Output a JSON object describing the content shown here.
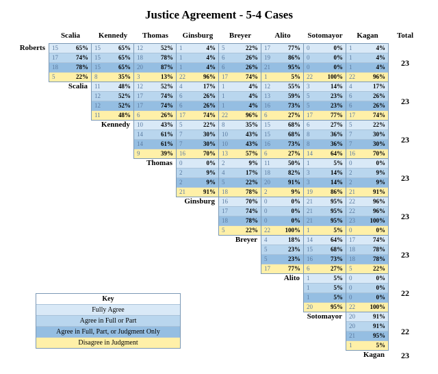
{
  "title": "Justice Agreement - 5-4 Cases",
  "justices": [
    "Roberts",
    "Scalia",
    "Kennedy",
    "Thomas",
    "Ginsburg",
    "Breyer",
    "Alito",
    "Sotomayor",
    "Kagan"
  ],
  "total_label": "Total",
  "colors": {
    "c1": "#d9e9f7",
    "c2": "#b9d6ee",
    "c3": "#95bee2",
    "c4": "#fff0a8",
    "border": "#7a98b5",
    "text_muted": "#5a7aa0"
  },
  "row_types": [
    "Fully Agree",
    "Agree in Full or Part",
    "Agree in Full, Part, or Judgment Only",
    "Disagree in Judgment"
  ],
  "totals": [
    23,
    23,
    23,
    23,
    23,
    23,
    22,
    22,
    23
  ],
  "cells": {
    "Roberts": {
      "Scalia": [
        [
          15,
          "65%"
        ],
        [
          17,
          "74%"
        ],
        [
          18,
          "78%"
        ],
        [
          5,
          "22%"
        ]
      ],
      "Kennedy": [
        [
          15,
          "65%"
        ],
        [
          15,
          "65%"
        ],
        [
          15,
          "65%"
        ],
        [
          8,
          "35%"
        ]
      ],
      "Thomas": [
        [
          12,
          "52%"
        ],
        [
          18,
          "78%"
        ],
        [
          20,
          "87%"
        ],
        [
          3,
          "13%"
        ]
      ],
      "Ginsburg": [
        [
          1,
          "4%"
        ],
        [
          1,
          "4%"
        ],
        [
          1,
          "4%"
        ],
        [
          22,
          "96%"
        ]
      ],
      "Breyer": [
        [
          5,
          "22%"
        ],
        [
          6,
          "26%"
        ],
        [
          6,
          "26%"
        ],
        [
          17,
          "74%"
        ]
      ],
      "Alito": [
        [
          17,
          "77%"
        ],
        [
          19,
          "86%"
        ],
        [
          21,
          "95%"
        ],
        [
          1,
          "5%"
        ]
      ],
      "Sotomayor": [
        [
          0,
          "0%"
        ],
        [
          0,
          "0%"
        ],
        [
          0,
          "0%"
        ],
        [
          22,
          "100%"
        ]
      ],
      "Kagan": [
        [
          1,
          "4%"
        ],
        [
          1,
          "4%"
        ],
        [
          1,
          "4%"
        ],
        [
          22,
          "96%"
        ]
      ]
    },
    "Scalia": {
      "Kennedy": [
        [
          11,
          "48%"
        ],
        [
          12,
          "52%"
        ],
        [
          12,
          "52%"
        ],
        [
          11,
          "48%"
        ]
      ],
      "Thomas": [
        [
          12,
          "52%"
        ],
        [
          17,
          "74%"
        ],
        [
          17,
          "74%"
        ],
        [
          6,
          "26%"
        ]
      ],
      "Ginsburg": [
        [
          4,
          "17%"
        ],
        [
          6,
          "26%"
        ],
        [
          6,
          "26%"
        ],
        [
          17,
          "74%"
        ]
      ],
      "Breyer": [
        [
          1,
          "4%"
        ],
        [
          1,
          "4%"
        ],
        [
          1,
          "4%"
        ],
        [
          22,
          "96%"
        ]
      ],
      "Alito": [
        [
          12,
          "55%"
        ],
        [
          13,
          "59%"
        ],
        [
          16,
          "73%"
        ],
        [
          6,
          "27%"
        ]
      ],
      "Sotomayor": [
        [
          3,
          "14%"
        ],
        [
          5,
          "23%"
        ],
        [
          5,
          "23%"
        ],
        [
          17,
          "77%"
        ]
      ],
      "Kagan": [
        [
          4,
          "17%"
        ],
        [
          6,
          "26%"
        ],
        [
          6,
          "26%"
        ],
        [
          17,
          "74%"
        ]
      ]
    },
    "Kennedy": {
      "Thomas": [
        [
          10,
          "43%"
        ],
        [
          14,
          "61%"
        ],
        [
          14,
          "61%"
        ],
        [
          9,
          "39%"
        ]
      ],
      "Ginsburg": [
        [
          5,
          "22%"
        ],
        [
          7,
          "30%"
        ],
        [
          7,
          "30%"
        ],
        [
          16,
          "70%"
        ]
      ],
      "Breyer": [
        [
          8,
          "35%"
        ],
        [
          10,
          "43%"
        ],
        [
          10,
          "43%"
        ],
        [
          13,
          "57%"
        ]
      ],
      "Alito": [
        [
          15,
          "68%"
        ],
        [
          15,
          "68%"
        ],
        [
          16,
          "73%"
        ],
        [
          6,
          "27%"
        ]
      ],
      "Sotomayor": [
        [
          6,
          "27%"
        ],
        [
          8,
          "36%"
        ],
        [
          8,
          "36%"
        ],
        [
          14,
          "64%"
        ]
      ],
      "Kagan": [
        [
          5,
          "22%"
        ],
        [
          7,
          "30%"
        ],
        [
          7,
          "30%"
        ],
        [
          16,
          "70%"
        ]
      ]
    },
    "Thomas": {
      "Ginsburg": [
        [
          0,
          "0%"
        ],
        [
          2,
          "9%"
        ],
        [
          2,
          "9%"
        ],
        [
          21,
          "91%"
        ]
      ],
      "Breyer": [
        [
          2,
          "9%"
        ],
        [
          4,
          "17%"
        ],
        [
          5,
          "22%"
        ],
        [
          18,
          "78%"
        ]
      ],
      "Alito": [
        [
          11,
          "50%"
        ],
        [
          18,
          "82%"
        ],
        [
          20,
          "91%"
        ],
        [
          2,
          "9%"
        ]
      ],
      "Sotomayor": [
        [
          1,
          "5%"
        ],
        [
          3,
          "14%"
        ],
        [
          3,
          "14%"
        ],
        [
          19,
          "86%"
        ]
      ],
      "Kagan": [
        [
          0,
          "0%"
        ],
        [
          2,
          "9%"
        ],
        [
          2,
          "9%"
        ],
        [
          21,
          "91%"
        ]
      ]
    },
    "Ginsburg": {
      "Breyer": [
        [
          16,
          "70%"
        ],
        [
          17,
          "74%"
        ],
        [
          18,
          "78%"
        ],
        [
          5,
          "22%"
        ]
      ],
      "Alito": [
        [
          0,
          "0%"
        ],
        [
          0,
          "0%"
        ],
        [
          0,
          "0%"
        ],
        [
          22,
          "100%"
        ]
      ],
      "Sotomayor": [
        [
          21,
          "95%"
        ],
        [
          21,
          "95%"
        ],
        [
          21,
          "95%"
        ],
        [
          1,
          "5%"
        ]
      ],
      "Kagan": [
        [
          22,
          "96%"
        ],
        [
          22,
          "96%"
        ],
        [
          23,
          "100%"
        ],
        [
          0,
          "0%"
        ]
      ]
    },
    "Breyer": {
      "Alito": [
        [
          4,
          "18%"
        ],
        [
          5,
          "23%"
        ],
        [
          5,
          "23%"
        ],
        [
          17,
          "77%"
        ]
      ],
      "Sotomayor": [
        [
          14,
          "64%"
        ],
        [
          15,
          "68%"
        ],
        [
          16,
          "73%"
        ],
        [
          6,
          "27%"
        ]
      ],
      "Kagan": [
        [
          17,
          "74%"
        ],
        [
          18,
          "78%"
        ],
        [
          18,
          "78%"
        ],
        [
          5,
          "22%"
        ]
      ]
    },
    "Alito": {
      "Sotomayor": [
        [
          1,
          "5%"
        ],
        [
          1,
          "5%"
        ],
        [
          1,
          "5%"
        ],
        [
          20,
          "95%"
        ]
      ],
      "Kagan": [
        [
          0,
          "0%"
        ],
        [
          0,
          "0%"
        ],
        [
          0,
          "0%"
        ],
        [
          22,
          "100%"
        ]
      ]
    },
    "Sotomayor": {
      "Kagan": [
        [
          20,
          "91%"
        ],
        [
          20,
          "91%"
        ],
        [
          21,
          "95%"
        ],
        [
          1,
          "5%"
        ]
      ]
    }
  },
  "key": {
    "title": "Key",
    "rows": [
      "Fully Agree",
      "Agree in Full or Part",
      "Agree in Full, Part, or Judgment Only",
      "Disagree in Judgment"
    ]
  }
}
